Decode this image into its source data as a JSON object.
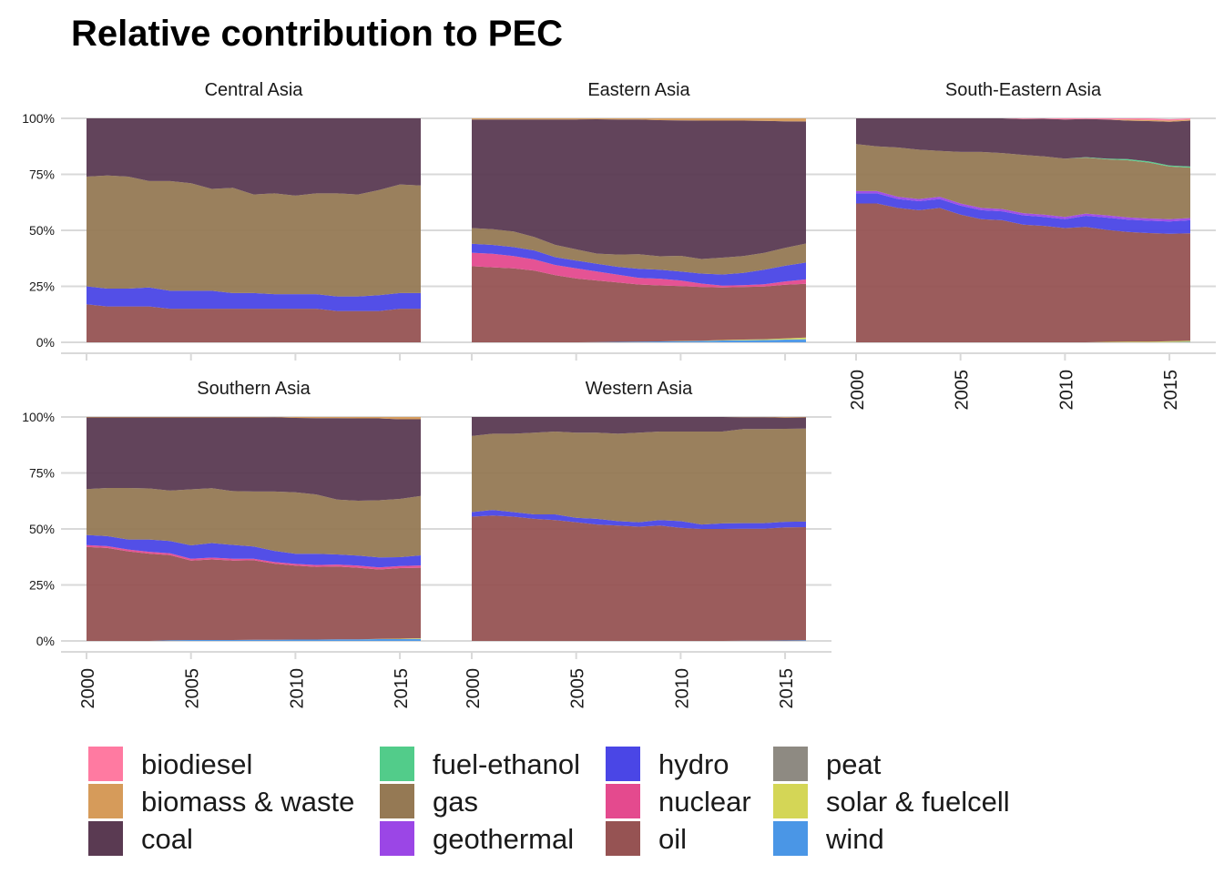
{
  "chart_data": {
    "type": "area",
    "title": "Relative contribution to PEC",
    "xlabel": "",
    "ylabel": "",
    "x": [
      2000,
      2001,
      2002,
      2003,
      2004,
      2005,
      2006,
      2007,
      2008,
      2009,
      2010,
      2011,
      2012,
      2013,
      2014,
      2015,
      2016
    ],
    "xlim": [
      2000,
      2016
    ],
    "ylim": [
      0,
      100
    ],
    "x_ticks": [
      "2000",
      "2005",
      "2010",
      "2015"
    ],
    "y_ticks": [
      "0%",
      "25%",
      "50%",
      "75%",
      "100%"
    ],
    "stack_order_bottom_to_top": [
      "wind",
      "solar & fuelcell",
      "peat",
      "oil",
      "nuclear",
      "hydro",
      "geothermal",
      "gas",
      "fuel-ethanol",
      "coal",
      "biomass & waste",
      "biodiesel"
    ],
    "legend": {
      "placement": "bottom",
      "entries": [
        {
          "name": "biodiesel",
          "color": "#ff7aa1"
        },
        {
          "name": "biomass & waste",
          "color": "#d69b5a"
        },
        {
          "name": "coal",
          "color": "#5a3a52"
        },
        {
          "name": "fuel-ethanol",
          "color": "#52cc8a"
        },
        {
          "name": "gas",
          "color": "#957954"
        },
        {
          "name": "geothermal",
          "color": "#9b46e6"
        },
        {
          "name": "hydro",
          "color": "#4a46e6"
        },
        {
          "name": "nuclear",
          "color": "#e44a8e"
        },
        {
          "name": "oil",
          "color": "#965353"
        },
        {
          "name": "peat",
          "color": "#8e8a82"
        },
        {
          "name": "solar & fuelcell",
          "color": "#d4d656"
        },
        {
          "name": "wind",
          "color": "#4a96e6"
        }
      ]
    },
    "panels": [
      {
        "title": "Central Asia",
        "series": {
          "oil": [
            17,
            16,
            16,
            16,
            15,
            15,
            15,
            15,
            15,
            15,
            15,
            15,
            14,
            14,
            14,
            15,
            15
          ],
          "hydro": [
            8,
            8,
            8,
            8.5,
            8,
            8,
            8,
            7,
            7,
            6.5,
            6.5,
            6.5,
            6.5,
            6.5,
            7,
            7,
            7
          ],
          "gas": [
            49,
            50.5,
            50,
            47.5,
            49,
            48,
            45.5,
            47,
            44,
            45,
            44,
            45,
            46,
            45.5,
            47,
            48.5,
            48
          ],
          "coal": [
            26,
            25.5,
            26,
            28,
            28,
            29,
            31.5,
            31,
            34,
            33.5,
            34.5,
            33.5,
            33.5,
            34,
            32,
            29.5,
            30
          ]
        }
      },
      {
        "title": "Eastern Asia",
        "series": {
          "wind": [
            0,
            0,
            0,
            0,
            0,
            0,
            0.1,
            0.2,
            0.3,
            0.4,
            0.5,
            0.6,
            0.8,
            0.9,
            1,
            1.2,
            1.4
          ],
          "solar & fuelcell": [
            0,
            0,
            0,
            0,
            0,
            0,
            0,
            0,
            0,
            0,
            0.1,
            0.1,
            0.2,
            0.3,
            0.4,
            0.5,
            0.7
          ],
          "oil": [
            34,
            33.5,
            33,
            32,
            30,
            28.5,
            27.5,
            26.5,
            25.5,
            25,
            24.5,
            24,
            23.5,
            23.5,
            23.5,
            24,
            24
          ],
          "nuclear": [
            6,
            6,
            5.5,
            5,
            4.5,
            4.5,
            4,
            3.5,
            3,
            3,
            2.5,
            1.5,
            0.8,
            0.8,
            1,
            1.5,
            2
          ],
          "hydro": [
            4,
            4,
            4,
            4,
            3.5,
            3.5,
            3.5,
            3.5,
            4,
            4,
            4,
            4.5,
            5,
            5.5,
            6.5,
            7,
            7.5
          ],
          "gas": [
            7,
            7,
            7,
            6,
            5.5,
            5,
            4.5,
            5.5,
            6.5,
            6,
            7,
            6.5,
            7.5,
            7.5,
            7.5,
            8,
            8.5
          ],
          "coal": [
            48.5,
            49,
            50,
            52.5,
            56,
            58,
            60,
            60.3,
            60.2,
            60.8,
            60.5,
            61.8,
            61.2,
            60.5,
            59,
            56.5,
            54.5
          ],
          "biomass & waste": [
            0.5,
            0.5,
            0.5,
            0.5,
            0.5,
            0.5,
            0.4,
            0.5,
            0.5,
            0.8,
            0.9,
            1,
            1,
            1,
            1.1,
            1.3,
            1.4
          ]
        }
      },
      {
        "title": "South-Eastern Asia",
        "series": {
          "wind": [
            0,
            0,
            0,
            0,
            0,
            0,
            0,
            0,
            0,
            0,
            0,
            0,
            0,
            0,
            0,
            0.1,
            0.2
          ],
          "solar & fuelcell": [
            0,
            0,
            0,
            0,
            0,
            0,
            0,
            0,
            0,
            0,
            0,
            0,
            0.2,
            0.3,
            0.3,
            0.4,
            0.5
          ],
          "oil": [
            62,
            62,
            60,
            59,
            60,
            57,
            55,
            54.5,
            52.5,
            52,
            51,
            51.5,
            50,
            49,
            48.5,
            48,
            48
          ],
          "hydro": [
            4.5,
            4.5,
            4,
            4,
            4,
            4,
            4,
            4,
            4.2,
            4,
            4,
            5,
            5.5,
            5.5,
            5.5,
            5.5,
            5.8
          ],
          "geothermal": [
            1,
            1,
            1,
            1,
            1,
            1,
            1,
            1,
            1,
            1,
            1,
            1,
            1,
            1,
            1,
            1,
            1
          ],
          "gas": [
            21,
            20,
            22,
            22,
            20.5,
            23,
            25,
            25,
            26,
            26,
            26,
            25,
            25,
            25.5,
            25,
            23.5,
            22.5
          ],
          "fuel-ethanol": [
            0,
            0,
            0,
            0,
            0,
            0,
            0,
            0,
            0,
            0,
            0,
            0.2,
            0.3,
            0.5,
            0.5,
            0.5,
            0.5
          ],
          "coal": [
            11.5,
            12.5,
            13,
            14,
            14.5,
            15,
            15,
            15.5,
            16,
            16.8,
            17.5,
            17,
            17.5,
            17.2,
            18,
            19.5,
            20.5
          ],
          "biodiesel": [
            0,
            0,
            0,
            0,
            0,
            0,
            0,
            0,
            0.3,
            0.2,
            0.5,
            0.3,
            0.5,
            0.5,
            0.7,
            0.6,
            0.5
          ],
          "biomass & waste": [
            0,
            0,
            0,
            0,
            0,
            0,
            0,
            0,
            0,
            0,
            0,
            0,
            0,
            0.5,
            0.5,
            0.5,
            0.5
          ]
        }
      },
      {
        "title": "Southern Asia",
        "series": {
          "wind": [
            0,
            0,
            0,
            0,
            0.3,
            0.4,
            0.4,
            0.4,
            0.5,
            0.5,
            0.6,
            0.6,
            0.7,
            0.7,
            0.8,
            0.8,
            0.9
          ],
          "solar & fuelcell": [
            0,
            0,
            0,
            0,
            0,
            0,
            0,
            0,
            0,
            0,
            0,
            0,
            0,
            0,
            0.1,
            0.2,
            0.3
          ],
          "oil": [
            42,
            41.5,
            40,
            39,
            38,
            35.5,
            36,
            35.5,
            35.5,
            34,
            33,
            32.5,
            32.5,
            32,
            31,
            31.5,
            31.5
          ],
          "nuclear": [
            0.8,
            0.8,
            0.8,
            0.8,
            0.8,
            0.8,
            0.8,
            0.8,
            0.7,
            0.7,
            0.8,
            0.8,
            0.9,
            0.9,
            0.9,
            0.9,
            1
          ],
          "hydro": [
            4.5,
            4.5,
            4.5,
            5.5,
            5.5,
            6,
            6.5,
            6.2,
            5.5,
            5,
            4.5,
            5,
            4.5,
            4.5,
            4.5,
            4,
            4.5
          ],
          "gas": [
            20.5,
            21.5,
            23,
            22.8,
            22.5,
            25,
            24.5,
            24,
            24.5,
            26.5,
            27.5,
            26.5,
            24.5,
            24.5,
            25.5,
            26,
            26.5
          ],
          "coal": [
            32,
            31.5,
            31.5,
            31.7,
            32.7,
            32.1,
            31.6,
            32.9,
            33.1,
            33.2,
            33.2,
            34.1,
            36.4,
            36.8,
            36.6,
            35.6,
            34.3
          ],
          "biomass & waste": [
            0.2,
            0.2,
            0.2,
            0.2,
            0.2,
            0.2,
            0.2,
            0.2,
            0.2,
            0.1,
            0.4,
            0.5,
            0.5,
            0.6,
            0.6,
            1,
            1
          ]
        }
      },
      {
        "title": "Western Asia",
        "series": {
          "wind": [
            0,
            0,
            0,
            0,
            0,
            0,
            0,
            0,
            0,
            0,
            0,
            0,
            0,
            0.1,
            0.1,
            0.2,
            0.3
          ],
          "oil": [
            55.5,
            56,
            55.5,
            54.5,
            54,
            53,
            52,
            51.5,
            51,
            51.5,
            50.5,
            50,
            50,
            50,
            50,
            50.5,
            50.5
          ],
          "hydro": [
            2,
            2.5,
            2,
            2,
            2.5,
            2,
            2.5,
            2,
            2,
            2.5,
            3,
            2,
            2.5,
            2.5,
            2.5,
            2.5,
            2.5
          ],
          "gas": [
            34,
            34,
            35,
            36.5,
            37,
            38,
            38.5,
            39,
            40,
            39.5,
            40,
            41.5,
            41,
            42,
            42,
            41.5,
            41.5
          ],
          "coal": [
            8.5,
            7.5,
            7.5,
            7,
            6.5,
            7,
            7,
            7.5,
            7,
            6.5,
            6.5,
            6.5,
            6.5,
            5.3,
            5.3,
            5,
            5
          ],
          "biomass & waste": [
            0,
            0,
            0,
            0,
            0,
            0,
            0,
            0,
            0,
            0,
            0,
            0,
            0,
            0.1,
            0.1,
            0.3,
            0.2
          ]
        }
      }
    ]
  }
}
